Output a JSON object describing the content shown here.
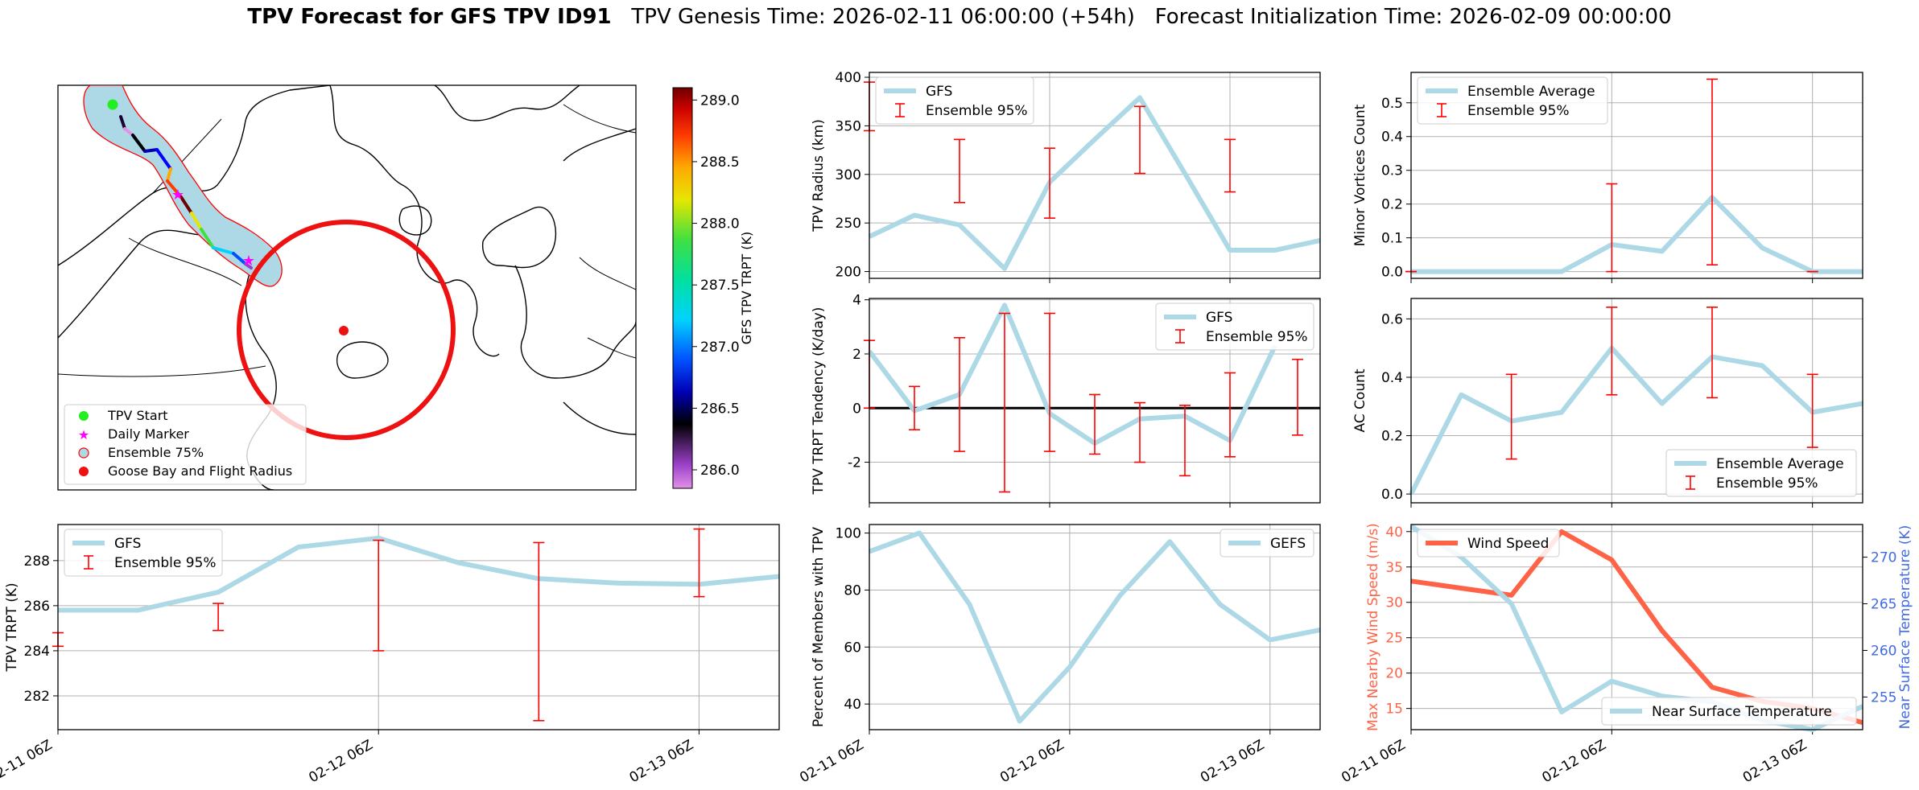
{
  "title": {
    "bold": "TPV Forecast for GFS TPV ID91",
    "genesis": "TPV Genesis Time: 2026-02-11 06:00:00 (+54h)",
    "init": "Forecast Initialization Time: 2026-02-09 00:00:00"
  },
  "colors": {
    "gfs": "#add8e6",
    "ensemble": "#ff0000",
    "wind": "#ff6347",
    "temp_axis": "#4169e1"
  },
  "map": {
    "legend": [
      "TPV Start",
      "Daily Marker",
      "Ensemble 75%",
      "Goose Bay and Flight Radius"
    ],
    "colorbar": {
      "label": "GFS TPV TRPT (K)",
      "ticks": [
        "289.0",
        "288.5",
        "288.0",
        "287.5",
        "287.0",
        "286.5",
        "286.0"
      ],
      "range": [
        285.85,
        289.1
      ]
    }
  },
  "time_ticks": [
    "02-11 06Z",
    "02-12 06Z",
    "02-13 06Z"
  ],
  "chart_data": [
    {
      "id": "radius",
      "type": "line",
      "ylabel": "TPV Radius (km)",
      "ylim": [
        193,
        405
      ],
      "yticks": [
        200,
        250,
        300,
        350,
        400
      ],
      "x": [
        0,
        1,
        2,
        3,
        4,
        5,
        6,
        7,
        8,
        9,
        10
      ],
      "series": [
        {
          "name": "GFS",
          "values": [
            236,
            258,
            248,
            203,
            292,
            336,
            379,
            301,
            222,
            222,
            232
          ]
        }
      ],
      "error_bars": {
        "name": "Ensemble 95%",
        "x": [
          0,
          2,
          4,
          6,
          8
        ],
        "low": [
          345,
          271,
          255,
          301,
          282
        ],
        "high": [
          395,
          336,
          327,
          370,
          336
        ]
      },
      "legend": "top-left",
      "grid": true
    },
    {
      "id": "minor",
      "type": "line",
      "ylabel": "Minor Vortices Count",
      "ylim": [
        -0.02,
        0.59
      ],
      "yticks": [
        "0.0",
        "0.1",
        "0.2",
        "0.3",
        "0.4",
        "0.5"
      ],
      "x": [
        0,
        1,
        2,
        3,
        4,
        5,
        6,
        7,
        8,
        9
      ],
      "series": [
        {
          "name": "Ensemble Average",
          "values": [
            0,
            0,
            0,
            0,
            0.08,
            0.06,
            0.22,
            0.07,
            0,
            0
          ]
        }
      ],
      "error_bars": {
        "name": "Ensemble 95%",
        "x": [
          0,
          4,
          6,
          8
        ],
        "low": [
          0,
          0,
          0.02,
          0
        ],
        "high": [
          0,
          0.26,
          0.57,
          0
        ]
      },
      "legend": "top-left",
      "grid": true
    },
    {
      "id": "tendency",
      "type": "line",
      "ylabel": "TPV TRPT Tendency (K/day)",
      "ylim": [
        -3.5,
        4.05
      ],
      "yticks": [
        -2,
        0,
        2,
        4
      ],
      "x": [
        0,
        1,
        2,
        3,
        4,
        5,
        6,
        7,
        8,
        9,
        10
      ],
      "series": [
        {
          "name": "GFS",
          "values": [
            2.1,
            -0.1,
            0.5,
            3.8,
            -0.2,
            -1.3,
            -0.4,
            -0.3,
            -1.2,
            2.3,
            null
          ]
        }
      ],
      "zero_line": true,
      "error_bars": {
        "name": "Ensemble 95%",
        "x": [
          0,
          1,
          2,
          3,
          4,
          5,
          6,
          7,
          8,
          9.5
        ],
        "low": [
          0,
          -0.8,
          -1.6,
          -3.1,
          -1.6,
          -1.7,
          -2.0,
          -2.5,
          -1.8,
          -1.0
        ],
        "high": [
          2.5,
          0.8,
          2.6,
          3.5,
          3.5,
          0.5,
          0.2,
          0.1,
          1.3,
          1.8
        ]
      },
      "legend": "top-right",
      "grid": true
    },
    {
      "id": "ac",
      "type": "line",
      "ylabel": "AC Count",
      "ylim": [
        -0.03,
        0.67
      ],
      "yticks": [
        "0.0",
        "0.2",
        "0.4",
        "0.6"
      ],
      "x": [
        0,
        1,
        2,
        3,
        4,
        5,
        6,
        7,
        8,
        9
      ],
      "series": [
        {
          "name": "Ensemble Average",
          "values": [
            0,
            0.34,
            0.25,
            0.28,
            0.5,
            0.31,
            0.47,
            0.44,
            0.28,
            0.31
          ]
        }
      ],
      "error_bars": {
        "name": "Ensemble 95%",
        "x": [
          2,
          4,
          6,
          8
        ],
        "low": [
          0.12,
          0.34,
          0.33,
          0.16
        ],
        "high": [
          0.41,
          0.64,
          0.64,
          0.41
        ]
      },
      "legend": "bottom-right",
      "grid": true
    },
    {
      "id": "trpt",
      "type": "line",
      "ylabel": "TPV TRPT (K)",
      "ylim": [
        280.5,
        289.6
      ],
      "yticks": [
        282,
        284,
        286,
        288
      ],
      "x": [
        0,
        1,
        2,
        3,
        4,
        5,
        6,
        7,
        8,
        9
      ],
      "series": [
        {
          "name": "GFS",
          "values": [
            285.8,
            285.8,
            286.6,
            288.6,
            289.0,
            287.9,
            287.2,
            287.0,
            286.95,
            287.3
          ]
        }
      ],
      "error_bars": {
        "name": "Ensemble 95%",
        "x": [
          0,
          2,
          4,
          6,
          8
        ],
        "low": [
          284.2,
          284.9,
          284.0,
          280.9,
          286.4
        ],
        "high": [
          284.8,
          286.1,
          288.9,
          288.8,
          289.4
        ]
      },
      "legend": "top-left",
      "grid": true
    },
    {
      "id": "percent",
      "type": "line",
      "ylabel": "Percent of Members with TPV",
      "ylim": [
        31,
        103
      ],
      "yticks": [
        40,
        60,
        80,
        100
      ],
      "x": [
        0,
        1,
        2,
        3,
        4,
        5,
        6,
        7,
        8,
        9
      ],
      "series": [
        {
          "name": "GEFS",
          "values": [
            93.5,
            100,
            75,
            34,
            53,
            78,
            97,
            75,
            62.5,
            66
          ]
        }
      ],
      "legend": "top-right",
      "grid": true
    },
    {
      "id": "wind_temp",
      "type": "line",
      "ylabel": "Max Nearby Wind Speed (m/s)",
      "ylim": [
        12,
        41
      ],
      "yticks": [
        15,
        20,
        25,
        30,
        35,
        40
      ],
      "y2label": "Near Surface Temperature (K)",
      "y2lim": [
        251.5,
        273.5
      ],
      "y2ticks": [
        255,
        260,
        265,
        270
      ],
      "x": [
        0,
        1,
        2,
        3,
        4,
        5,
        6,
        7,
        8,
        9
      ],
      "series": [
        {
          "name": "Wind Speed",
          "axis": "left",
          "values": [
            33,
            32,
            31,
            40,
            36,
            26,
            18,
            16,
            15,
            13
          ]
        },
        {
          "name": "Near Surface Temperature",
          "axis": "right",
          "values": [
            273.3,
            270.0,
            265.0,
            253.4,
            256.7,
            255.1,
            254.5,
            252.5,
            251.5,
            254.0
          ]
        }
      ],
      "legend": [
        "top-left",
        "bottom-right"
      ],
      "grid": true
    }
  ]
}
